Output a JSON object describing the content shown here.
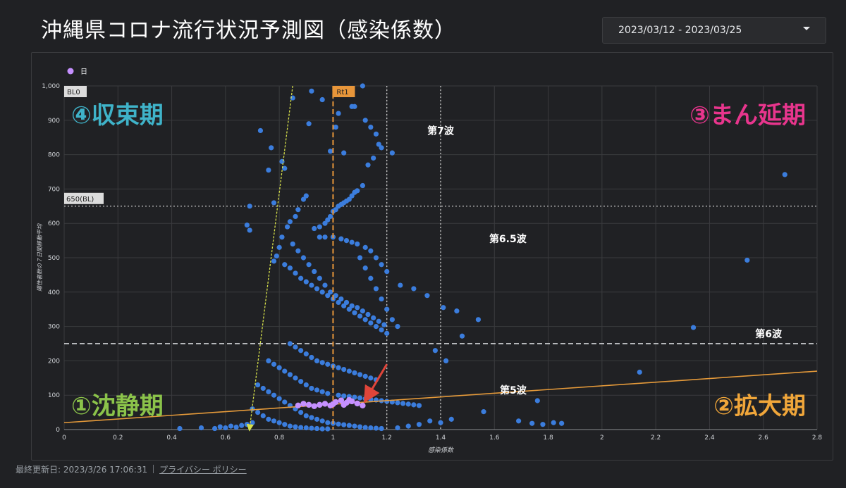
{
  "header": {
    "title": "沖縄県コロナ流行状況予測図（感染係数）",
    "date_range": "2023/03/12 - 2023/03/25"
  },
  "footer": {
    "updated": "最終更新日: 2023/3/26 17:06:31",
    "privacy_link": "プライバシー ポリシー"
  },
  "colors": {
    "point": "#3b7ddd",
    "highlight": "#c590ff",
    "trend": "#e59a3a",
    "rt1": "#e8963a",
    "arrow_red": "#e0453a",
    "arrow_yellow": "#d6e04a",
    "q1": "#8bc34a",
    "q2": "#f0a63a",
    "q3": "#e8358d",
    "q4": "#3fb3c9"
  },
  "chart_data": {
    "type": "scatter",
    "xlabel": "感染係数",
    "ylabel": "陽性者数の７日間移動平均",
    "xlim": [
      0,
      2.8
    ],
    "ylim": [
      0,
      1000
    ],
    "x_ticks": [
      "0",
      "0.2",
      "0.4",
      "0.6",
      "0.8",
      "1",
      "1.2",
      "1.4",
      "1.6",
      "1.8",
      "2",
      "2.2",
      "2.4",
      "2.6",
      "2.8"
    ],
    "y_ticks": [
      "0",
      "100",
      "200",
      "300",
      "400",
      "500",
      "600",
      "700",
      "800",
      "900",
      "1,000"
    ],
    "grid": true,
    "legend": {
      "position": "top-left",
      "entries": [
        {
          "name": "日",
          "color": "#c590ff"
        }
      ]
    },
    "reference_lines": {
      "rt1": {
        "x": 1,
        "label": "Rt1"
      },
      "bl": {
        "y": 650,
        "label": "650(BL)"
      },
      "bl0": {
        "label": "BL0"
      },
      "wave6": {
        "y": 250,
        "label": "第6波"
      },
      "x_dotted": [
        1.2,
        1.4
      ]
    },
    "trend_line": {
      "x": [
        0,
        2.8
      ],
      "y": [
        20,
        170
      ]
    },
    "quadrants": {
      "q4": "④収束期",
      "q3": "③まん延期",
      "q1": "①沈静期",
      "q2": "②拡大期"
    },
    "wave_labels": [
      {
        "text": "第7波",
        "x": 1.4,
        "y": 860
      },
      {
        "text": "第6.5波",
        "x": 1.65,
        "y": 545
      },
      {
        "text": "第5波",
        "x": 1.67,
        "y": 105
      }
    ],
    "arrows": {
      "red": {
        "from": [
          1.2,
          190
        ],
        "to": [
          1.13,
          98
        ]
      },
      "yellow": {
        "from": [
          0.85,
          1000
        ],
        "to": [
          0.69,
          5
        ]
      }
    },
    "points_daily": [
      [
        0.97,
        75
      ],
      [
        0.99,
        70
      ],
      [
        1.01,
        80
      ],
      [
        1.03,
        85
      ],
      [
        1.05,
        78
      ],
      [
        1.07,
        82
      ],
      [
        1.09,
        76
      ],
      [
        1.11,
        70
      ],
      [
        0.93,
        68
      ],
      [
        0.91,
        72
      ],
      [
        0.89,
        75
      ],
      [
        0.95,
        72
      ],
      [
        0.87,
        70
      ],
      [
        1.0,
        74
      ],
      [
        1.04,
        72
      ],
      [
        1.06,
        86
      ]
    ],
    "points_history": [
      [
        0.69,
        650
      ],
      [
        0.68,
        595
      ],
      [
        0.69,
        580
      ],
      [
        0.73,
        870
      ],
      [
        0.77,
        820
      ],
      [
        0.76,
        755
      ],
      [
        0.78,
        660
      ],
      [
        0.82,
        760
      ],
      [
        0.81,
        780
      ],
      [
        0.85,
        965
      ],
      [
        0.91,
        890
      ],
      [
        0.92,
        985
      ],
      [
        0.96,
        960
      ],
      [
        0.99,
        810
      ],
      [
        1.01,
        880
      ],
      [
        1.02,
        920
      ],
      [
        1.04,
        805
      ],
      [
        1.07,
        940
      ],
      [
        1.08,
        940
      ],
      [
        1.11,
        1000
      ],
      [
        1.12,
        900
      ],
      [
        1.14,
        880
      ],
      [
        1.16,
        860
      ],
      [
        1.18,
        820
      ],
      [
        1.22,
        805
      ],
      [
        1.17,
        830
      ],
      [
        1.15,
        790
      ],
      [
        1.13,
        770
      ],
      [
        1.11,
        710
      ],
      [
        1.09,
        695
      ],
      [
        1.08,
        690
      ],
      [
        1.07,
        680
      ],
      [
        1.06,
        670
      ],
      [
        1.05,
        665
      ],
      [
        1.04,
        660
      ],
      [
        1.03,
        655
      ],
      [
        1.02,
        650
      ],
      [
        1.01,
        640
      ],
      [
        1.0,
        635
      ],
      [
        0.99,
        620
      ],
      [
        0.98,
        610
      ],
      [
        0.97,
        600
      ],
      [
        0.95,
        590
      ],
      [
        0.93,
        585
      ],
      [
        0.9,
        680
      ],
      [
        0.89,
        670
      ],
      [
        0.87,
        640
      ],
      [
        0.86,
        620
      ],
      [
        0.84,
        605
      ],
      [
        0.83,
        590
      ],
      [
        0.81,
        560
      ],
      [
        0.8,
        530
      ],
      [
        0.79,
        505
      ],
      [
        0.78,
        490
      ],
      [
        0.82,
        480
      ],
      [
        0.84,
        470
      ],
      [
        0.86,
        455
      ],
      [
        0.88,
        440
      ],
      [
        0.9,
        430
      ],
      [
        0.92,
        420
      ],
      [
        0.94,
        410
      ],
      [
        0.96,
        400
      ],
      [
        0.98,
        390
      ],
      [
        1.0,
        380
      ],
      [
        1.02,
        370
      ],
      [
        1.04,
        360
      ],
      [
        1.06,
        350
      ],
      [
        1.08,
        340
      ],
      [
        1.1,
        330
      ],
      [
        1.12,
        320
      ],
      [
        1.14,
        310
      ],
      [
        1.16,
        300
      ],
      [
        1.18,
        290
      ],
      [
        1.2,
        280
      ],
      [
        0.85,
        540
      ],
      [
        0.87,
        520
      ],
      [
        0.89,
        500
      ],
      [
        0.91,
        480
      ],
      [
        0.93,
        460
      ],
      [
        0.95,
        440
      ],
      [
        0.97,
        420
      ],
      [
        0.99,
        400
      ],
      [
        1.01,
        390
      ],
      [
        1.03,
        380
      ],
      [
        1.05,
        370
      ],
      [
        1.07,
        360
      ],
      [
        1.09,
        355
      ],
      [
        1.11,
        345
      ],
      [
        1.13,
        335
      ],
      [
        1.15,
        325
      ],
      [
        1.17,
        315
      ],
      [
        1.19,
        305
      ],
      [
        0.95,
        560
      ],
      [
        0.97,
        560
      ],
      [
        1.0,
        560
      ],
      [
        1.03,
        555
      ],
      [
        1.05,
        550
      ],
      [
        1.07,
        545
      ],
      [
        1.09,
        540
      ],
      [
        1.12,
        530
      ],
      [
        1.14,
        520
      ],
      [
        1.16,
        500
      ],
      [
        1.18,
        480
      ],
      [
        1.2,
        460
      ],
      [
        1.25,
        420
      ],
      [
        1.3,
        410
      ],
      [
        1.35,
        390
      ],
      [
        1.41,
        355
      ],
      [
        1.46,
        345
      ],
      [
        1.54,
        320
      ],
      [
        1.48,
        272
      ],
      [
        1.38,
        230
      ],
      [
        1.42,
        200
      ],
      [
        2.68,
        742
      ],
      [
        2.54,
        493
      ],
      [
        2.34,
        297
      ],
      [
        2.14,
        167
      ],
      [
        1.1,
        500
      ],
      [
        1.12,
        470
      ],
      [
        1.14,
        440
      ],
      [
        1.16,
        410
      ],
      [
        1.18,
        380
      ],
      [
        1.2,
        350
      ],
      [
        1.22,
        320
      ],
      [
        1.24,
        300
      ],
      [
        0.84,
        250
      ],
      [
        0.86,
        240
      ],
      [
        0.88,
        230
      ],
      [
        0.9,
        220
      ],
      [
        0.92,
        210
      ],
      [
        0.94,
        200
      ],
      [
        0.96,
        195
      ],
      [
        0.98,
        190
      ],
      [
        1.0,
        185
      ],
      [
        1.02,
        180
      ],
      [
        1.04,
        175
      ],
      [
        1.06,
        170
      ],
      [
        1.08,
        165
      ],
      [
        1.1,
        160
      ],
      [
        1.12,
        155
      ],
      [
        1.14,
        150
      ],
      [
        1.16,
        145
      ],
      [
        0.76,
        200
      ],
      [
        0.78,
        190
      ],
      [
        0.8,
        180
      ],
      [
        0.82,
        170
      ],
      [
        0.84,
        160
      ],
      [
        0.86,
        150
      ],
      [
        0.88,
        140
      ],
      [
        0.9,
        130
      ],
      [
        0.92,
        120
      ],
      [
        0.94,
        115
      ],
      [
        0.96,
        110
      ],
      [
        0.98,
        105
      ],
      [
        1.02,
        100
      ],
      [
        1.04,
        98
      ],
      [
        1.06,
        96
      ],
      [
        1.08,
        94
      ],
      [
        1.1,
        92
      ],
      [
        1.12,
        90
      ],
      [
        1.14,
        88
      ],
      [
        1.16,
        86
      ],
      [
        1.18,
        84
      ],
      [
        1.2,
        82
      ],
      [
        1.22,
        80
      ],
      [
        1.24,
        78
      ],
      [
        1.26,
        76
      ],
      [
        1.28,
        74
      ],
      [
        1.3,
        72
      ],
      [
        1.32,
        70
      ],
      [
        0.72,
        130
      ],
      [
        0.74,
        120
      ],
      [
        0.76,
        110
      ],
      [
        0.78,
        100
      ],
      [
        0.8,
        90
      ],
      [
        0.82,
        80
      ],
      [
        0.84,
        70
      ],
      [
        0.86,
        60
      ],
      [
        0.88,
        50
      ],
      [
        0.9,
        40
      ],
      [
        0.92,
        35
      ],
      [
        0.94,
        30
      ],
      [
        0.96,
        25
      ],
      [
        0.98,
        20
      ],
      [
        1.0,
        18
      ],
      [
        1.02,
        16
      ],
      [
        1.04,
        14
      ],
      [
        1.06,
        12
      ],
      [
        1.08,
        10
      ],
      [
        1.1,
        8
      ],
      [
        1.12,
        6
      ],
      [
        1.14,
        5
      ],
      [
        1.16,
        4
      ],
      [
        1.18,
        3
      ],
      [
        0.7,
        60
      ],
      [
        0.72,
        50
      ],
      [
        0.74,
        40
      ],
      [
        0.76,
        30
      ],
      [
        0.78,
        25
      ],
      [
        0.8,
        20
      ],
      [
        0.82,
        15
      ],
      [
        0.84,
        10
      ],
      [
        0.86,
        8
      ],
      [
        0.88,
        6
      ],
      [
        0.9,
        5
      ],
      [
        0.92,
        4
      ],
      [
        0.94,
        3
      ],
      [
        0.96,
        2
      ],
      [
        0.98,
        2
      ],
      [
        0.43,
        3
      ],
      [
        0.51,
        5
      ],
      [
        0.56,
        3
      ],
      [
        0.58,
        8
      ],
      [
        0.6,
        5
      ],
      [
        0.62,
        10
      ],
      [
        0.64,
        7
      ],
      [
        0.66,
        12
      ],
      [
        0.68,
        15
      ],
      [
        0.7,
        20
      ],
      [
        1.56,
        52
      ],
      [
        1.69,
        25
      ],
      [
        1.74,
        18
      ],
      [
        1.76,
        84
      ],
      [
        1.78,
        15
      ],
      [
        1.82,
        20
      ],
      [
        1.85,
        18
      ],
      [
        1.44,
        30
      ],
      [
        1.4,
        20
      ],
      [
        1.36,
        25
      ],
      [
        1.32,
        15
      ],
      [
        1.28,
        10
      ],
      [
        1.24,
        5
      ]
    ]
  }
}
